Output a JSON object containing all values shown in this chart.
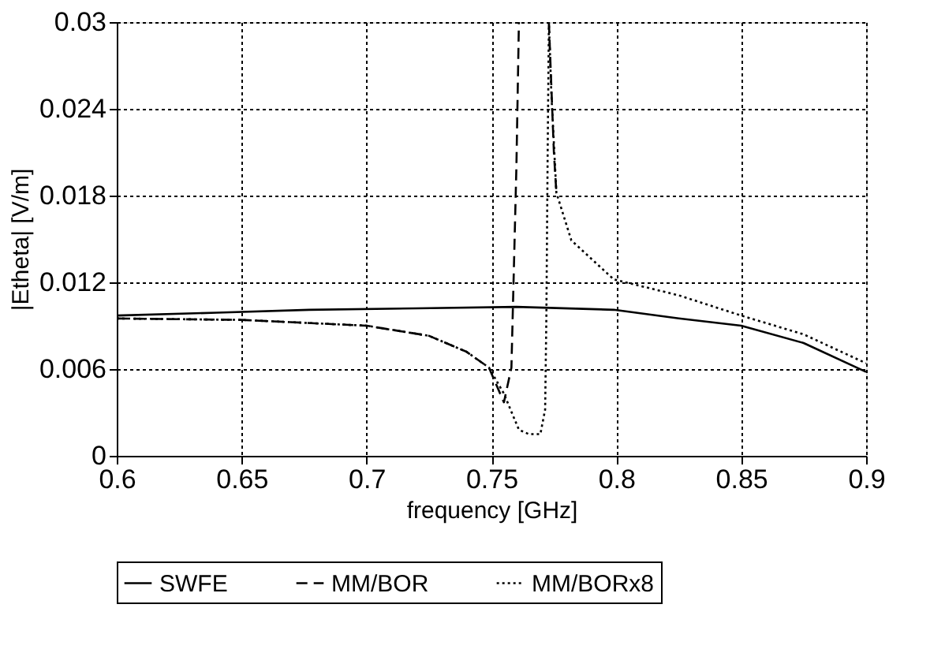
{
  "chart_data": {
    "type": "line",
    "xlabel": "frequency [GHz]",
    "ylabel": "|Etheta| [V/m]",
    "xlim": [
      0.6,
      0.9
    ],
    "xticks": [
      0.6,
      0.65,
      0.7,
      0.75,
      0.8,
      0.85,
      0.9
    ],
    "ylim": [
      0,
      0.03
    ],
    "yticks": [
      0,
      0.006,
      0.012,
      0.018,
      0.024,
      0.03
    ],
    "grid": true,
    "legend": "bottom",
    "marker": "none",
    "series": [
      {
        "name": "SWFE",
        "color": "#000000",
        "line_style": "solid",
        "x": [
          0.6,
          0.64,
          0.677,
          0.72,
          0.76,
          0.799,
          0.825,
          0.85,
          0.875,
          0.9
        ],
        "values": [
          0.0097,
          0.0099,
          0.0101,
          0.0102,
          0.0103,
          0.0101,
          0.0095,
          0.009,
          0.0078,
          0.0058
        ]
      },
      {
        "name": "MM/BOR",
        "color": "#000000",
        "line_style": "dashed",
        "x": [
          0.6,
          0.65,
          0.7,
          0.725,
          0.74,
          0.749,
          0.755,
          0.758,
          0.76,
          0.761,
          0.767,
          0.773,
          0.775,
          0.776
        ],
        "values": [
          0.0095,
          0.0094,
          0.009,
          0.0083,
          0.0072,
          0.0061,
          0.0037,
          0.0061,
          0.02,
          0.03,
          null,
          0.03,
          0.021,
          0.0182
        ]
      },
      {
        "name": "MM/BORx8",
        "color": "#000000",
        "line_style": "dotted",
        "x": [
          0.6,
          0.65,
          0.7,
          0.725,
          0.74,
          0.749,
          0.755,
          0.761,
          0.765,
          0.7696,
          0.7715,
          0.772,
          0.7725,
          0.773,
          0.774,
          0.776,
          0.782,
          0.799,
          0.825,
          0.85,
          0.875,
          0.9
        ],
        "values": [
          0.0095,
          0.0094,
          0.009,
          0.0083,
          0.0072,
          0.0061,
          0.0043,
          0.0018,
          0.0015,
          0.0015,
          0.0032,
          0.0097,
          0.0207,
          0.03,
          0.025,
          0.0182,
          0.0149,
          0.0122,
          0.0111,
          0.0097,
          0.0084,
          0.0064
        ]
      }
    ]
  }
}
